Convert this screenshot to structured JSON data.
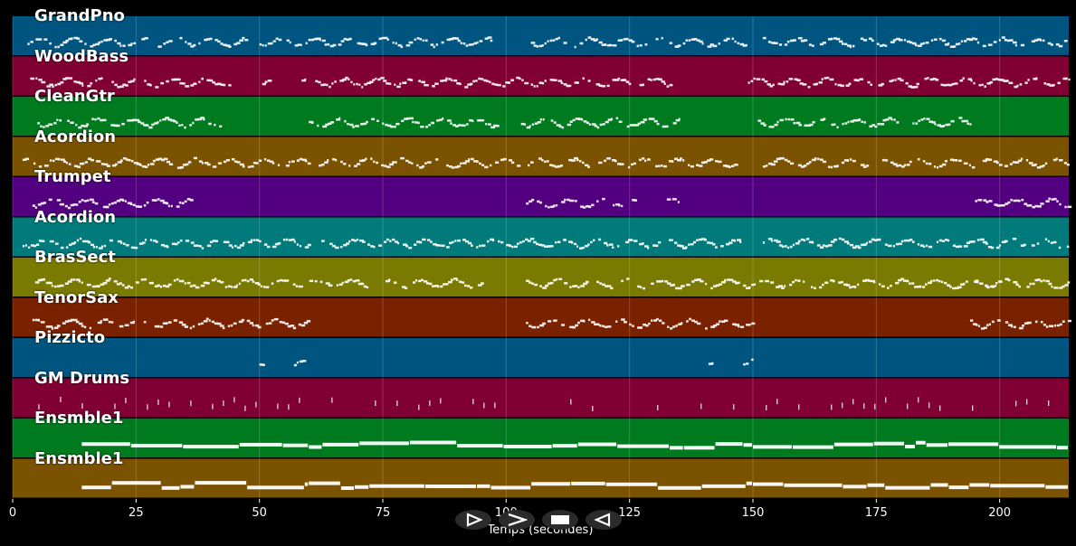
{
  "piano_roll": {
    "tracks": [
      {
        "name": "GrandPno",
        "color": "#005580",
        "start": 0,
        "end": 215
      },
      {
        "name": "WoodBass",
        "color": "#800033",
        "start": 0,
        "end": 215
      },
      {
        "name": "CleanGtr",
        "color": "#007a1f",
        "start": 0,
        "end": 215
      },
      {
        "name": "Acordion",
        "color": "#7a5200",
        "start": 0,
        "end": 215
      },
      {
        "name": "Trumpet",
        "color": "#520080",
        "start": 0,
        "end": 215
      },
      {
        "name": "Acordion",
        "color": "#007a7a",
        "start": 0,
        "end": 215
      },
      {
        "name": "BrasSect",
        "color": "#7a7a00",
        "start": 0,
        "end": 215
      },
      {
        "name": "TenorSax",
        "color": "#7a2200",
        "start": 0,
        "end": 215
      },
      {
        "name": "Pizzicto",
        "color": "#005580",
        "start": 0,
        "end": 215
      },
      {
        "name": "GM Drums",
        "color": "#800033",
        "start": 0,
        "end": 215
      },
      {
        "name": "Ensmble1",
        "color": "#007a1f",
        "start": 0,
        "end": 215
      },
      {
        "name": "Ensmble1",
        "color": "#7a5200",
        "start": 0,
        "end": 215
      }
    ],
    "x_axis": {
      "label": "Temps (secondes)",
      "min": 0,
      "max": 214,
      "ticks": [
        "0",
        "25",
        "50",
        "75",
        "100",
        "125",
        "150",
        "175",
        "200"
      ],
      "tick_values": [
        0,
        25,
        50,
        75,
        100,
        125,
        150,
        175,
        200
      ]
    },
    "controls": [
      {
        "name": "play-button",
        "icon": "play-outline-icon"
      },
      {
        "name": "forward-button",
        "icon": "chevron-right-icon"
      },
      {
        "name": "stop-button",
        "icon": "stop-icon"
      },
      {
        "name": "rewind-button",
        "icon": "rewind-outline-icon"
      }
    ]
  }
}
